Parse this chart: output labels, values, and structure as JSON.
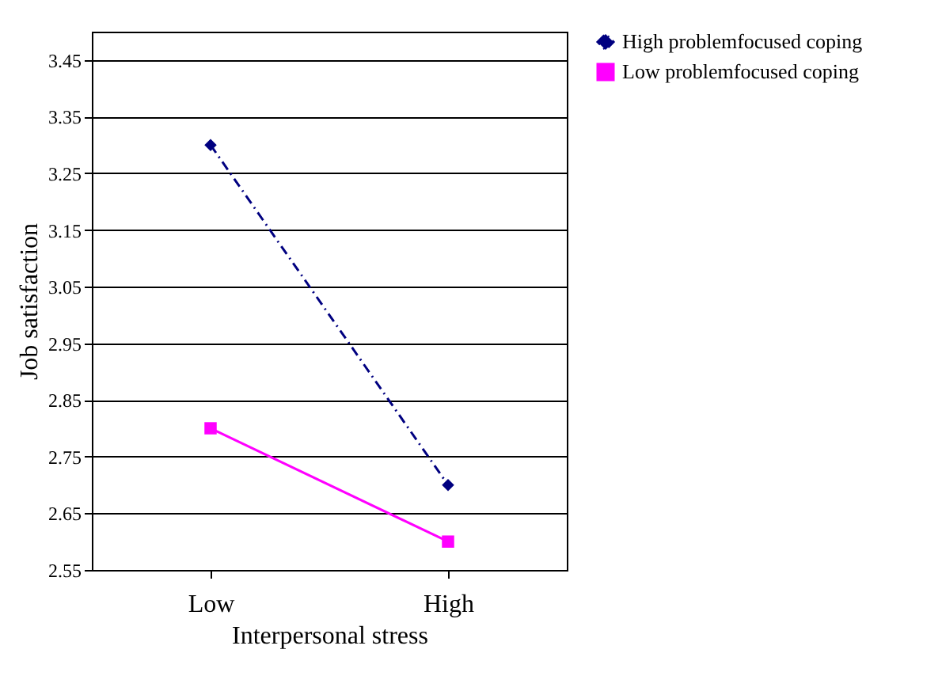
{
  "chart_data": {
    "type": "line",
    "xlabel": "Interpersonal stress",
    "ylabel": "Job satisfaction",
    "categories": [
      "Low",
      "High"
    ],
    "series": [
      {
        "name": "High problemfocused coping",
        "color": "#000080",
        "values": [
          3.3,
          2.7
        ],
        "marker": "diamond",
        "line_style": "dashed"
      },
      {
        "name": "Low problemfocused coping",
        "color": "#ff00ff",
        "values": [
          2.8,
          2.6
        ],
        "marker": "square",
        "line_style": "solid"
      }
    ],
    "ylim": [
      2.55,
      3.5
    ],
    "yticks": [
      2.55,
      2.65,
      2.75,
      2.85,
      2.95,
      3.05,
      3.15,
      3.25,
      3.35,
      3.45
    ],
    "grid": "y",
    "legend": "right"
  }
}
